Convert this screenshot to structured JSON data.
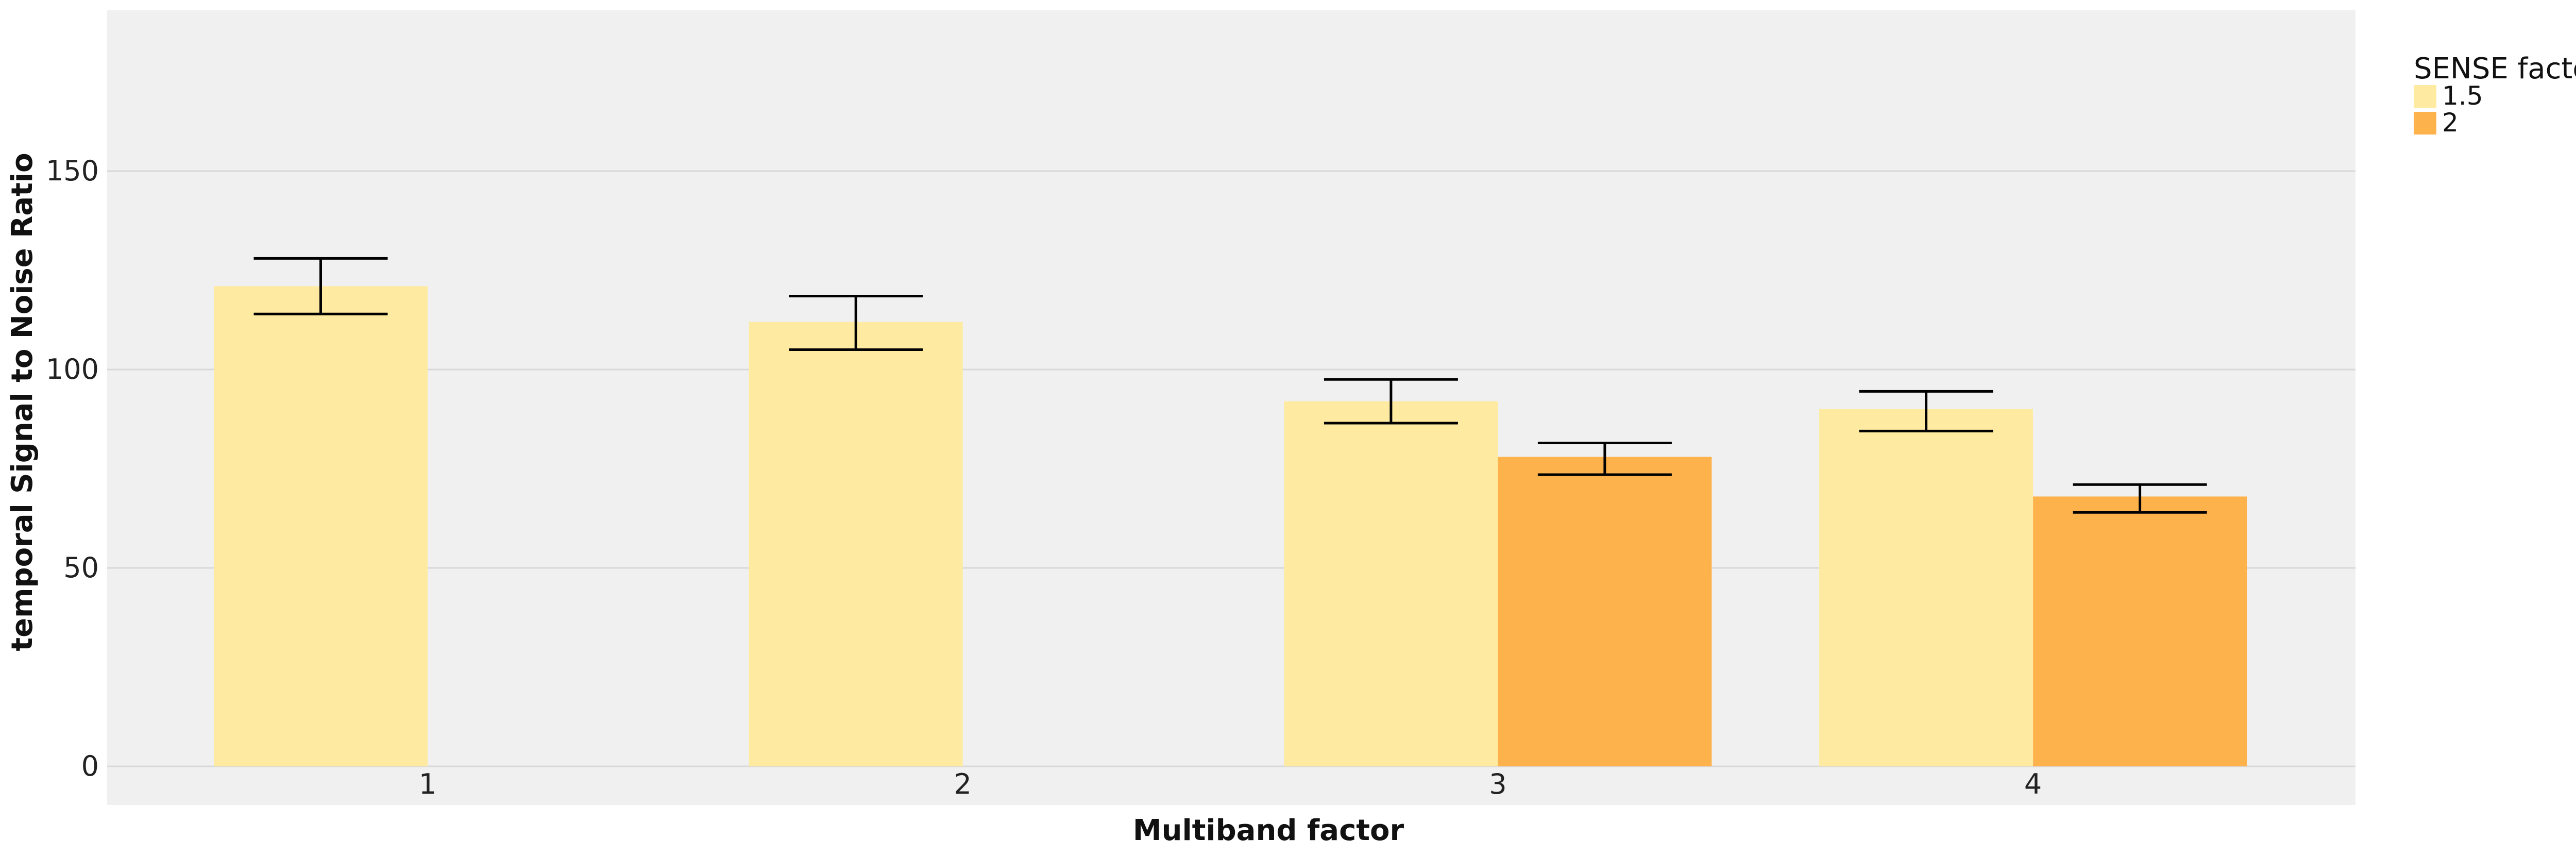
{
  "chart_data": {
    "type": "bar",
    "xlabel": "Multiband factor",
    "ylabel": "temporal Signal to Noise Ratio",
    "categories": [
      "1",
      "2",
      "3",
      "4"
    ],
    "ylim": [
      0,
      190
    ],
    "yticks": [
      0,
      50,
      100,
      150
    ],
    "grid": true,
    "legend": {
      "title": "SENSE factor",
      "placement": "top-right-outside"
    },
    "series": [
      {
        "name": "1.5",
        "color": "#feeba1",
        "values": [
          121,
          112,
          92,
          90
        ],
        "err_low": [
          114,
          105,
          86.5,
          84.5
        ],
        "err_high": [
          128,
          118.5,
          97.5,
          94.5
        ]
      },
      {
        "name": "2",
        "color": "#feb24c",
        "values": [
          null,
          null,
          78,
          68
        ],
        "err_low": [
          null,
          null,
          73.5,
          64
        ],
        "err_high": [
          null,
          null,
          81.5,
          71
        ]
      }
    ]
  }
}
